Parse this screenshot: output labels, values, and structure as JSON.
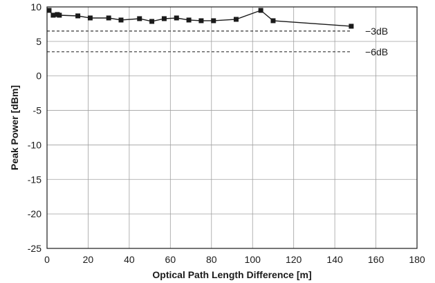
{
  "chart_data": {
    "type": "line",
    "title": "",
    "xlabel": "Optical Path Length Difference  [m]",
    "ylabel": "Peak Power [dBm]",
    "xlim": [
      0,
      180
    ],
    "ylim": [
      -25,
      10
    ],
    "xticks": [
      0,
      20,
      40,
      60,
      80,
      100,
      120,
      140,
      160,
      180
    ],
    "yticks": [
      -25,
      -20,
      -15,
      -10,
      -5,
      0,
      5,
      10
    ],
    "grid": true,
    "series": [
      {
        "marker": "square",
        "color": "#1a1a1a",
        "x": [
          1,
          3,
          5,
          6,
          15,
          21,
          30,
          36,
          45,
          51,
          57,
          63,
          69,
          75,
          81,
          92,
          104,
          110,
          148
        ],
        "y": [
          9.5,
          8.8,
          8.9,
          8.8,
          8.7,
          8.4,
          8.4,
          8.1,
          8.3,
          7.9,
          8.3,
          8.4,
          8.1,
          8.0,
          8.0,
          8.2,
          9.5,
          8.0,
          7.2
        ]
      }
    ],
    "reference_lines": [
      {
        "y": 6.5,
        "x_end": 148,
        "style": "dashed",
        "label": "−3dB"
      },
      {
        "y": 3.5,
        "x_end": 148,
        "style": "dashed",
        "label": "−6dB"
      }
    ]
  }
}
